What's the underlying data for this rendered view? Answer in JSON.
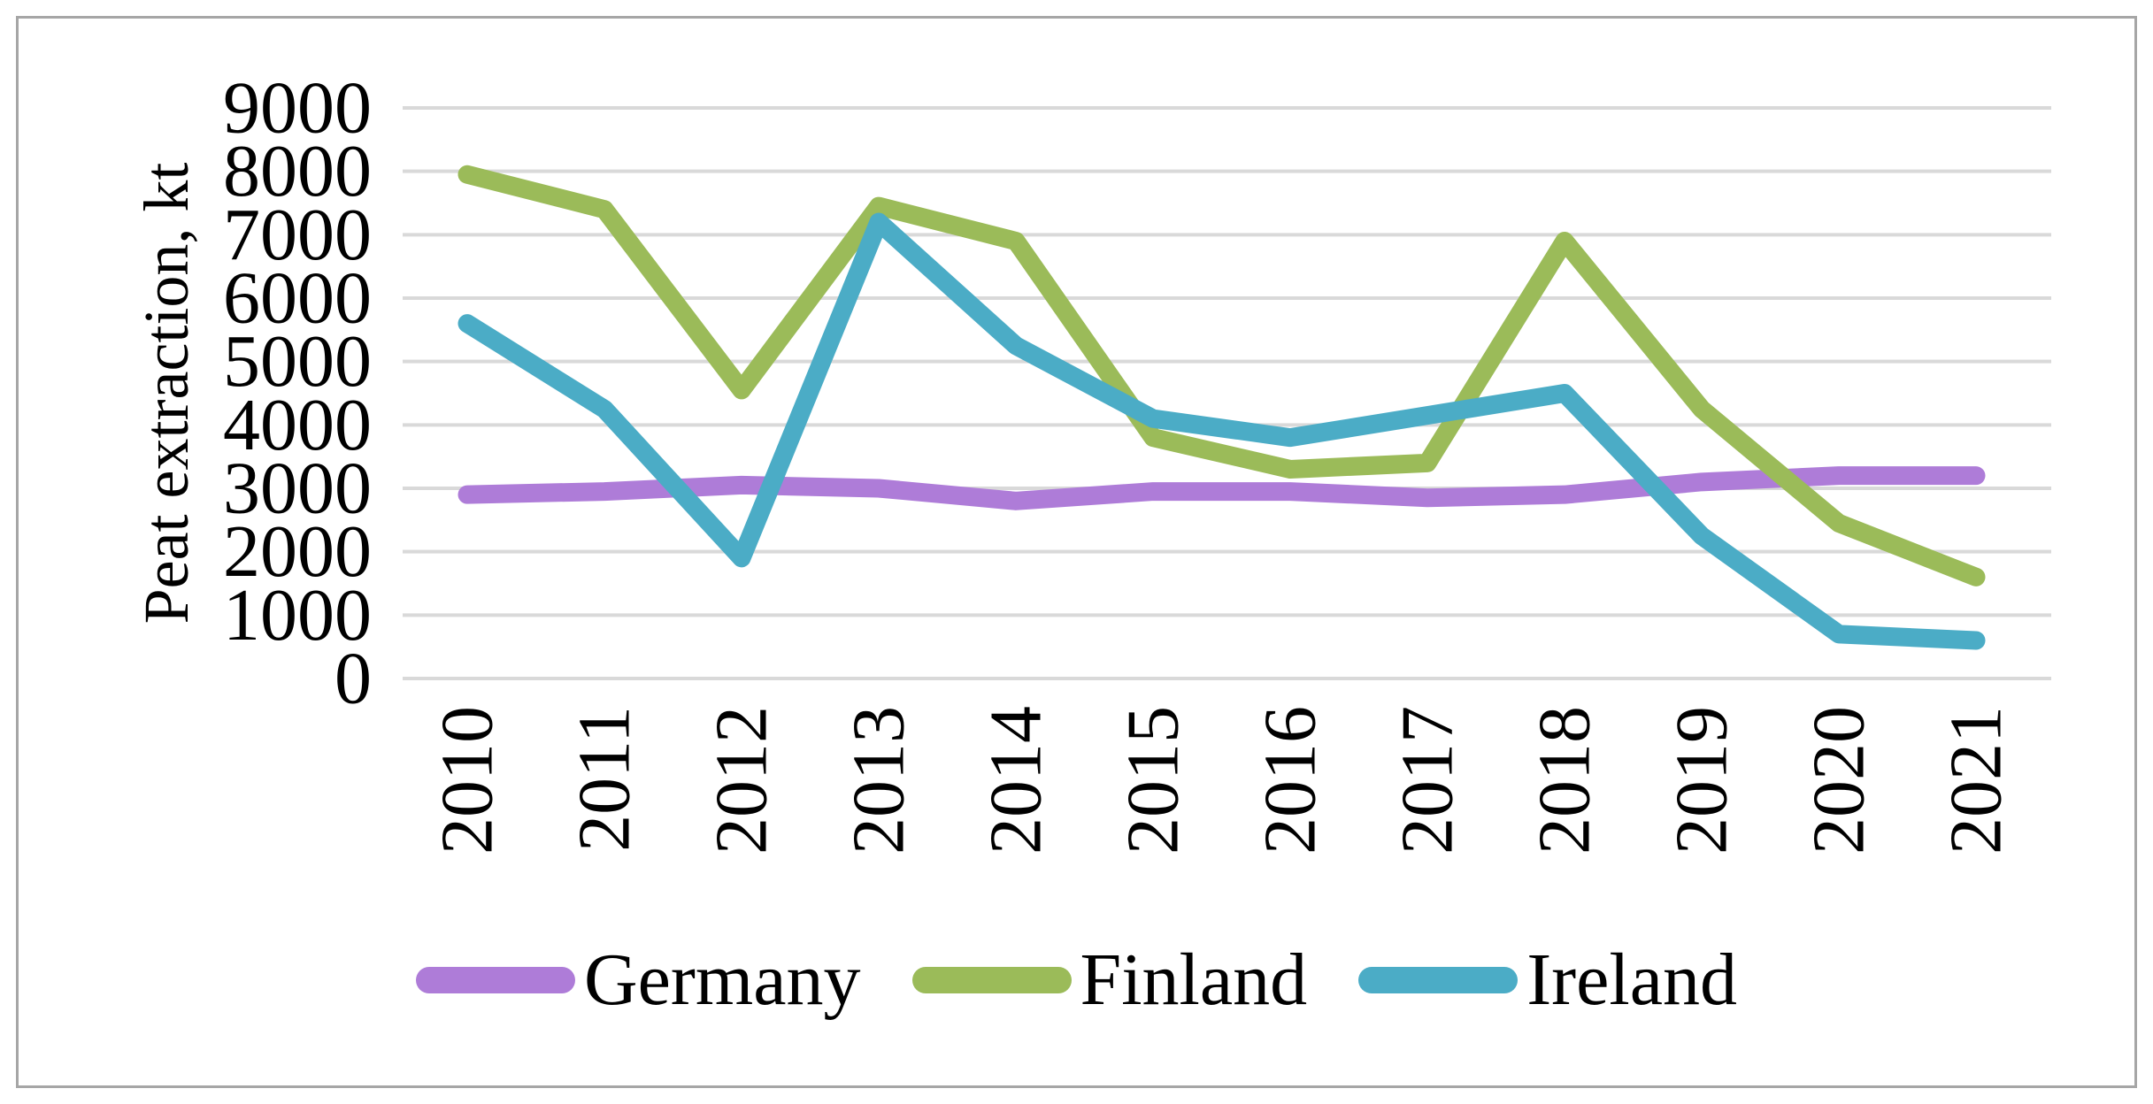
{
  "figure": {
    "background": "#FFFFFF",
    "border_color": "#A6A6A6"
  },
  "chart_data": {
    "type": "line",
    "title": "",
    "xlabel": "",
    "ylabel": "Peat extraction, kt",
    "categories": [
      "2010",
      "2011",
      "2012",
      "2013",
      "2014",
      "2015",
      "2016",
      "2017",
      "2018",
      "2019",
      "2020",
      "2021"
    ],
    "series": [
      {
        "name": "Germany",
        "color": "#AE7CD8",
        "values": [
          2900,
          2950,
          3050,
          3000,
          2800,
          2950,
          2950,
          2850,
          2900,
          3100,
          3200,
          3200
        ]
      },
      {
        "name": "Finland",
        "color": "#9BBB59",
        "values": [
          7950,
          7400,
          4550,
          7450,
          6900,
          3800,
          3300,
          3400,
          6900,
          4250,
          2450,
          1600
        ]
      },
      {
        "name": "Ireland",
        "color": "#4BACC6",
        "values": [
          5600,
          4250,
          1900,
          7200,
          5250,
          4100,
          3800,
          4150,
          4500,
          2250,
          700,
          600
        ]
      }
    ],
    "ylim": [
      0,
      9000
    ],
    "yticks": [
      0,
      1000,
      2000,
      3000,
      4000,
      5000,
      6000,
      7000,
      8000,
      9000
    ],
    "grid": "horizontal",
    "gridline_color": "#D9D9D9",
    "text_color": "#000000",
    "legend_position": "bottom"
  }
}
